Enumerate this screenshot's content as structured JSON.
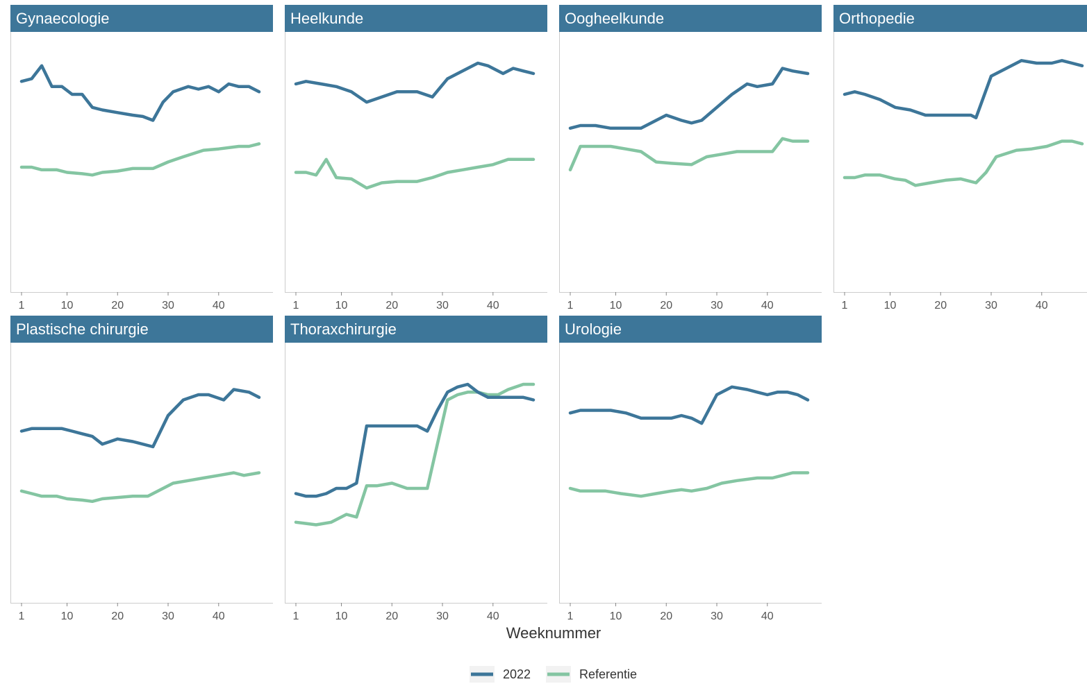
{
  "chart_data": {
    "type": "line",
    "xlabel": "Weeknummer",
    "x_ticks": [
      1,
      10,
      20,
      30,
      40
    ],
    "xlim": [
      1,
      48
    ],
    "ylim": [
      0,
      100
    ],
    "y_axis_labels_visible": false,
    "grid": false,
    "legend_position": "bottom",
    "colors": {
      "strip_bg": "#3d7699",
      "2022": "#3d7699",
      "Referentie": "#84c5a2",
      "axis": "#cccccc"
    },
    "legend": [
      {
        "key": "2022",
        "label": "2022"
      },
      {
        "key": "Referentie",
        "label": "Referentie"
      }
    ],
    "panels": [
      {
        "title": "Gynaecologie",
        "series": [
          {
            "name": "2022",
            "x": [
              1,
              3,
              5,
              7,
              9,
              11,
              13,
              15,
              17,
              20,
              23,
              25,
              27,
              29,
              31,
              34,
              36,
              38,
              40,
              42,
              44,
              46,
              48
            ],
            "y": [
              81,
              82,
              87,
              79,
              79,
              76,
              76,
              71,
              70,
              69,
              68,
              67.5,
              66,
              73,
              77,
              79,
              78,
              79,
              77,
              80,
              79,
              79,
              77
            ]
          },
          {
            "name": "Referentie",
            "x": [
              1,
              3,
              5,
              8,
              10,
              13,
              15,
              17,
              20,
              23,
              27,
              30,
              33,
              37,
              40,
              44,
              46,
              48
            ],
            "y": [
              48,
              48,
              47,
              47,
              46,
              45.5,
              45,
              46,
              46.5,
              47.5,
              47.5,
              50,
              52,
              54.5,
              55,
              56,
              56,
              57
            ]
          }
        ]
      },
      {
        "title": "Heelkunde",
        "series": [
          {
            "name": "2022",
            "x": [
              1,
              3,
              6,
              9,
              12,
              15,
              18,
              21,
              25,
              28,
              31,
              34,
              37,
              39,
              42,
              44,
              46,
              48
            ],
            "y": [
              80,
              81,
              80,
              79,
              77,
              73,
              75,
              77,
              77,
              75,
              82,
              85,
              88,
              87,
              84,
              86,
              85,
              84
            ]
          },
          {
            "name": "Referentie",
            "x": [
              1,
              3,
              5,
              7,
              9,
              12,
              15,
              18,
              21,
              25,
              28,
              31,
              34,
              37,
              40,
              43,
              46,
              48
            ],
            "y": [
              46,
              46,
              45,
              51,
              44,
              43.5,
              40,
              42,
              42.5,
              42.5,
              44,
              46,
              47,
              48,
              49,
              51,
              51,
              51
            ]
          }
        ]
      },
      {
        "title": "Oogheelkunde",
        "series": [
          {
            "name": "2022",
            "x": [
              1,
              3,
              6,
              9,
              12,
              15,
              18,
              20,
              23,
              25,
              27,
              30,
              33,
              36,
              38,
              41,
              43,
              45,
              48
            ],
            "y": [
              63,
              64,
              64,
              63,
              63,
              63,
              66,
              68,
              66,
              65,
              66,
              71,
              76,
              80,
              79,
              80,
              86,
              85,
              84
            ]
          },
          {
            "name": "Referentie",
            "x": [
              1,
              3,
              6,
              9,
              12,
              15,
              18,
              21,
              25,
              28,
              31,
              34,
              38,
              41,
              43,
              45,
              48
            ],
            "y": [
              47,
              56,
              56,
              56,
              55,
              54,
              50,
              49.5,
              49,
              52,
              53,
              54,
              54,
              54,
              59,
              58,
              58
            ]
          }
        ]
      },
      {
        "title": "Orthopedie",
        "series": [
          {
            "name": "2022",
            "x": [
              1,
              3,
              5,
              8,
              11,
              14,
              17,
              20,
              23,
              26,
              27,
              30,
              33,
              36,
              39,
              42,
              44,
              46,
              48
            ],
            "y": [
              76,
              77,
              76,
              74,
              71,
              70,
              68,
              68,
              68,
              68,
              67,
              83,
              86,
              89,
              88,
              88,
              89,
              88,
              87
            ]
          },
          {
            "name": "Referentie",
            "x": [
              1,
              3,
              5,
              8,
              11,
              13,
              15,
              18,
              21,
              24,
              27,
              29,
              31,
              35,
              38,
              41,
              44,
              46,
              48
            ],
            "y": [
              44,
              44,
              45,
              45,
              43.5,
              43,
              41,
              42,
              43,
              43.5,
              42,
              46,
              52,
              54.5,
              55,
              56,
              58,
              58,
              57
            ]
          }
        ]
      },
      {
        "title": "Plastische chirurgie",
        "series": [
          {
            "name": "2022",
            "x": [
              1,
              3,
              6,
              9,
              11,
              13,
              15,
              17,
              20,
              23,
              27,
              30,
              33,
              36,
              38,
              41,
              43,
              46,
              48
            ],
            "y": [
              66,
              67,
              67,
              67,
              66,
              65,
              64,
              61,
              63,
              62,
              60,
              72,
              78,
              80,
              80,
              78,
              82,
              81,
              79
            ]
          },
          {
            "name": "Referentie",
            "x": [
              1,
              3,
              5,
              8,
              10,
              13,
              15,
              17,
              20,
              23,
              26,
              28,
              31,
              34,
              37,
              40,
              43,
              45,
              48
            ],
            "y": [
              43,
              42,
              41,
              41,
              40,
              39.5,
              39,
              40,
              40.5,
              41,
              41,
              43,
              46,
              47,
              48,
              49,
              50,
              49,
              50
            ]
          }
        ]
      },
      {
        "title": "Thoraxchirurgie",
        "series": [
          {
            "name": "2022",
            "x": [
              1,
              3,
              5,
              7,
              9,
              11,
              13,
              15,
              17,
              20,
              23,
              25,
              27,
              29,
              31,
              33,
              35,
              37,
              39,
              41,
              44,
              46,
              48
            ],
            "y": [
              42,
              41,
              41,
              42,
              44,
              44,
              46,
              68,
              68,
              68,
              68,
              68,
              66,
              74,
              81,
              83,
              84,
              81,
              79,
              79,
              79,
              79,
              78
            ]
          },
          {
            "name": "Referentie",
            "x": [
              1,
              3,
              5,
              8,
              11,
              13,
              15,
              17,
              20,
              23,
              27,
              29,
              31,
              33,
              35,
              37,
              39,
              41,
              43,
              46,
              48
            ],
            "y": [
              31,
              30.5,
              30,
              31,
              34,
              33,
              45,
              45,
              46,
              44,
              44,
              61,
              78,
              80,
              81,
              81,
              80,
              80,
              82,
              84,
              84
            ]
          }
        ]
      },
      {
        "title": "Urologie",
        "series": [
          {
            "name": "2022",
            "x": [
              1,
              3,
              6,
              9,
              12,
              15,
              18,
              21,
              23,
              25,
              27,
              30,
              33,
              36,
              38,
              40,
              42,
              44,
              46,
              48
            ],
            "y": [
              73,
              74,
              74,
              74,
              73,
              71,
              71,
              71,
              72,
              71,
              69,
              80,
              83,
              82,
              81,
              80,
              81,
              81,
              80,
              78
            ]
          },
          {
            "name": "Referentie",
            "x": [
              1,
              3,
              5,
              8,
              11,
              13,
              15,
              18,
              21,
              23,
              25,
              28,
              31,
              34,
              38,
              41,
              43,
              45,
              48
            ],
            "y": [
              44,
              43,
              43,
              43,
              42,
              41.5,
              41,
              42,
              43,
              43.5,
              43,
              44,
              46,
              47,
              48,
              48,
              49,
              50,
              50
            ]
          }
        ]
      }
    ]
  }
}
